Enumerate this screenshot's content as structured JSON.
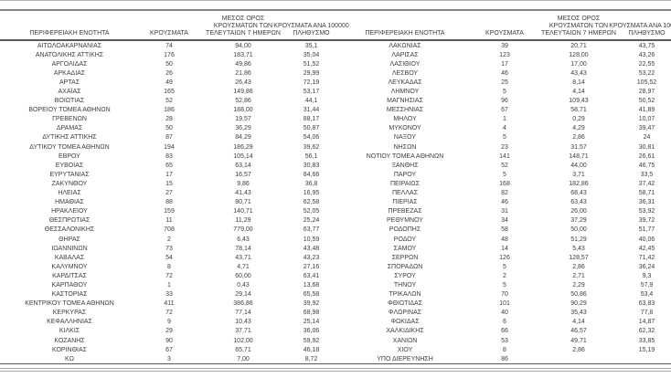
{
  "table": {
    "headers": {
      "region": "ΠΕΡΙΦΕΡΕΙΑΚΗ ΕΝΟΤΗΤΑ",
      "cases": "ΚΡΟΥΣΜΑΤΑ",
      "avg7": "ΜΕΣΟΣ ΟΡΟΣ\nΚΡΟΥΣΜΑΤΩΝ ΤΩΝ\nΤΕΛΕΥΤΑΙΩΝ 7 ΗΜΕΡΩΝ",
      "per100k": "ΚΡΟΥΣΜΑΤΑ ΑΝΑ 100000\nΠΛΗΘΥΣΜΟ"
    },
    "left_rows": [
      [
        "ΑΙΤΩΛΟΑΚΑΡΝΑΝΙΑΣ",
        "74",
        "94,00",
        "35,1"
      ],
      [
        "ΑΝΑΤΟΛΙΚΗΣ ΑΤΤΙΚΗΣ",
        "176",
        "183,71",
        "35,04"
      ],
      [
        "ΑΡΓΟΛΙΔΑΣ",
        "50",
        "49,86",
        "51,52"
      ],
      [
        "ΑΡΚΑΔΙΑΣ",
        "26",
        "21,86",
        "29,99"
      ],
      [
        "ΑΡΤΑΣ",
        "49",
        "26,43",
        "72,19"
      ],
      [
        "ΑΧΑΪΑΣ",
        "165",
        "149,86",
        "53,17"
      ],
      [
        "ΒΟΙΩΤΙΑΣ",
        "52",
        "52,86",
        "44,1"
      ],
      [
        "ΒΟΡΕΙΟΥ ΤΟΜΕΑ ΑΘΗΝΩΝ",
        "186",
        "188,00",
        "31,44"
      ],
      [
        "ΓΡΕΒΕΝΩΝ",
        "28",
        "19,57",
        "88,17"
      ],
      [
        "ΔΡΑΜΑΣ",
        "50",
        "36,29",
        "50,87"
      ],
      [
        "ΔΥΤΙΚΗΣ ΑΤΤΙΚΗΣ",
        "87",
        "84,29",
        "54,06"
      ],
      [
        "ΔΥΤΙΚΟΥ ΤΟΜΕΑ ΑΘΗΝΩΝ",
        "194",
        "186,29",
        "39,62"
      ],
      [
        "ΕΒΡΟΥ",
        "83",
        "105,14",
        "56,1"
      ],
      [
        "ΕΥΒΟΙΑΣ",
        "65",
        "63,14",
        "30,83"
      ],
      [
        "ΕΥΡΥΤΑΝΙΑΣ",
        "17",
        "16,57",
        "84,66"
      ],
      [
        "ΖΑΚΥΝΘΟΥ",
        "15",
        "9,86",
        "36,8"
      ],
      [
        "ΗΛΕΙΑΣ",
        "27",
        "41,43",
        "16,95"
      ],
      [
        "ΗΜΑΘΙΑΣ",
        "88",
        "80,71",
        "62,58"
      ],
      [
        "ΗΡΑΚΛΕΙΟΥ",
        "159",
        "140,71",
        "52,05"
      ],
      [
        "ΘΕΣΠΡΩΤΙΑΣ",
        "11",
        "11,29",
        "25,24"
      ],
      [
        "ΘΕΣΣΑΛΟΝΙΚΗΣ",
        "708",
        "779,00",
        "63,77"
      ],
      [
        "ΘΗΡΑΣ",
        "2",
        "6,43",
        "10,59"
      ],
      [
        "ΙΩΑΝΝΙΝΩΝ",
        "73",
        "78,14",
        "43,48"
      ],
      [
        "ΚΑΒΑΛΑΣ",
        "54",
        "43,71",
        "43,23"
      ],
      [
        "ΚΑΛΥΜΝΟΥ",
        "8",
        "4,71",
        "27,16"
      ],
      [
        "ΚΑΡΔΙΤΣΑΣ",
        "72",
        "60,00",
        "63,41"
      ],
      [
        "ΚΑΡΠΑΘΟΥ",
        "1",
        "0,43",
        "13,68"
      ],
      [
        "ΚΑΣΤΟΡΙΑΣ",
        "33",
        "29,14",
        "65,58"
      ],
      [
        "ΚΕΝΤΡΙΚΟΥ ΤΟΜΕΑ ΑΘΗΝΩΝ",
        "411",
        "386,86",
        "39,92"
      ],
      [
        "ΚΕΡΚΥΡΑΣ",
        "72",
        "77,14",
        "68,98"
      ],
      [
        "ΚΕΦΑΛΛΗΝΙΑΣ",
        "9",
        "10,43",
        "25,14"
      ],
      [
        "ΚΙΛΚΙΣ",
        "29",
        "37,71",
        "36,06"
      ],
      [
        "ΚΟΖΑΝΗΣ",
        "90",
        "102,00",
        "59,92"
      ],
      [
        "ΚΟΡΙΝΘΙΑΣ",
        "67",
        "65,71",
        "46,18"
      ],
      [
        "ΚΩ",
        "3",
        "7,00",
        "8,72"
      ]
    ],
    "right_rows": [
      [
        "ΛΑΚΩΝΙΑΣ",
        "39",
        "20,71",
        "43,75"
      ],
      [
        "ΛΑΡΙΣΑΣ",
        "123",
        "128,00",
        "43,26"
      ],
      [
        "ΛΑΣΙΘΙΟΥ",
        "17",
        "17,00",
        "22,55"
      ],
      [
        "ΛΕΣΒΟΥ",
        "46",
        "43,43",
        "53,22"
      ],
      [
        "ΛΕΥΚΑΔΑΣ",
        "25",
        "8,14",
        "105,52"
      ],
      [
        "ΛΗΜΝΟΥ",
        "5",
        "4,14",
        "28,97"
      ],
      [
        "ΜΑΓΝΗΣΙΑΣ",
        "96",
        "109,43",
        "50,52"
      ],
      [
        "ΜΕΣΣΗΝΙΑΣ",
        "67",
        "58,71",
        "41,89"
      ],
      [
        "ΜΗΛΟΥ",
        "1",
        "0,29",
        "10,07"
      ],
      [
        "ΜΥΚΟΝΟΥ",
        "4",
        "4,29",
        "39,47"
      ],
      [
        "ΝΑΞΟΥ",
        "5",
        "2,86",
        "24"
      ],
      [
        "ΝΗΣΩΝ",
        "23",
        "31,57",
        "30,81"
      ],
      [
        "ΝΟΤΙΟΥ ΤΟΜΕΑ ΑΘΗΝΩΝ",
        "141",
        "148,71",
        "26,61"
      ],
      [
        "ΞΑΝΘΗΣ",
        "52",
        "44,00",
        "46,75"
      ],
      [
        "ΠΑΡΟΥ",
        "5",
        "3,71",
        "33,5"
      ],
      [
        "ΠΕΙΡΑΙΩΣ",
        "168",
        "182,86",
        "37,42"
      ],
      [
        "ΠΕΛΛΑΣ",
        "82",
        "68,43",
        "58,71"
      ],
      [
        "ΠΙΕΡΙΑΣ",
        "46",
        "63,43",
        "36,31"
      ],
      [
        "ΠΡΕΒΕΖΑΣ",
        "31",
        "26,00",
        "53,92"
      ],
      [
        "ΡΕΘΥΜΝΟΥ",
        "34",
        "37,29",
        "39,72"
      ],
      [
        "ΡΟΔΟΠΗΣ",
        "58",
        "50,00",
        "51,77"
      ],
      [
        "ΡΟΔΟΥ",
        "48",
        "51,29",
        "40,06"
      ],
      [
        "ΣΑΜΟΥ",
        "14",
        "5,43",
        "42,45"
      ],
      [
        "ΣΕΡΡΩΝ",
        "126",
        "128,57",
        "71,42"
      ],
      [
        "ΣΠΟΡΑΔΩΝ",
        "5",
        "2,86",
        "36,24"
      ],
      [
        "ΣΥΡΟΥ",
        "2",
        "2,71",
        "9,3"
      ],
      [
        "ΤΗΝΟΥ",
        "5",
        "2,29",
        "57,9"
      ],
      [
        "ΤΡΙΚΑΛΩΝ",
        "70",
        "50,86",
        "53,4"
      ],
      [
        "ΦΘΙΩΤΙΔΑΣ",
        "101",
        "90,29",
        "63,83"
      ],
      [
        "ΦΛΩΡΙΝΑΣ",
        "40",
        "35,43",
        "77,8"
      ],
      [
        "ΦΩΚΙΔΑΣ",
        "6",
        "4,14",
        "14,87"
      ],
      [
        "ΧΑΛΚΙΔΙΚΗΣ",
        "66",
        "46,57",
        "62,32"
      ],
      [
        "ΧΑΝΙΩΝ",
        "53",
        "49,71",
        "33,85"
      ],
      [
        "ΧΙΟΥ",
        "8",
        "2,86",
        "15,19"
      ],
      [
        "ΥΠΟ ΔΙΕΡΕΥΝΗΣΗ",
        "86",
        "",
        ""
      ]
    ]
  },
  "colors": {
    "text": "#3d3d3d",
    "rule_dark": "#5a5a5a",
    "rule_medium": "#848484",
    "rule_light": "#a8a8a8"
  }
}
